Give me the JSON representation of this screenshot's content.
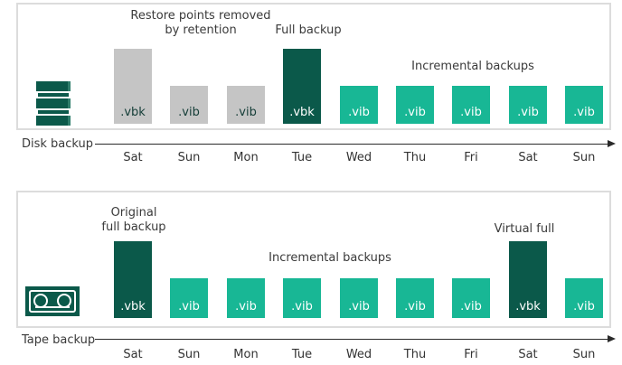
{
  "colors": {
    "full_backup_bar": "#0b594a",
    "incremental_bar": "#18b795",
    "removed_bar": "#c5c5c5",
    "panel_border": "#dcdcdc",
    "text": "#3a3a3a",
    "bar_label_light": "#ffffff",
    "bar_label_dark": "#143d37"
  },
  "disk_section": {
    "axis_label": "Disk backup",
    "annotations": {
      "retention_line1": "Restore points removed",
      "retention_line2": "by retention",
      "full_backup": "Full backup",
      "incremental": "Incremental backups"
    },
    "days": [
      "Sat",
      "Sun",
      "Mon",
      "Tue",
      "Wed",
      "Thu",
      "Fri",
      "Sat",
      "Sun"
    ],
    "bars": [
      {
        "day": "Sat",
        "label": ".vbk",
        "kind": "removed",
        "size": "tall"
      },
      {
        "day": "Sun",
        "label": ".vib",
        "kind": "removed",
        "size": "short"
      },
      {
        "day": "Mon",
        "label": ".vib",
        "kind": "removed",
        "size": "short"
      },
      {
        "day": "Tue",
        "label": ".vbk",
        "kind": "full",
        "size": "tall"
      },
      {
        "day": "Wed",
        "label": ".vib",
        "kind": "incremental",
        "size": "short"
      },
      {
        "day": "Thu",
        "label": ".vib",
        "kind": "incremental",
        "size": "short"
      },
      {
        "day": "Fri",
        "label": ".vib",
        "kind": "incremental",
        "size": "short"
      },
      {
        "day": "Sat",
        "label": ".vib",
        "kind": "incremental",
        "size": "short"
      },
      {
        "day": "Sun",
        "label": ".vib",
        "kind": "incremental",
        "size": "short"
      }
    ]
  },
  "tape_section": {
    "axis_label": "Tape backup",
    "annotations": {
      "original_line1": "Original",
      "original_line2": "full backup",
      "incremental": "Incremental backups",
      "virtual_full": "Virtual full"
    },
    "days": [
      "Sat",
      "Sun",
      "Mon",
      "Tue",
      "Wed",
      "Thu",
      "Fri",
      "Sat",
      "Sun"
    ],
    "bars": [
      {
        "day": "Sat",
        "label": ".vbk",
        "kind": "full",
        "size": "tall"
      },
      {
        "day": "Sun",
        "label": ".vib",
        "kind": "incremental",
        "size": "short"
      },
      {
        "day": "Mon",
        "label": ".vib",
        "kind": "incremental",
        "size": "short"
      },
      {
        "day": "Tue",
        "label": ".vib",
        "kind": "incremental",
        "size": "short"
      },
      {
        "day": "Wed",
        "label": ".vib",
        "kind": "incremental",
        "size": "short"
      },
      {
        "day": "Thu",
        "label": ".vib",
        "kind": "incremental",
        "size": "short"
      },
      {
        "day": "Fri",
        "label": ".vib",
        "kind": "incremental",
        "size": "short"
      },
      {
        "day": "Sat",
        "label": ".vbk",
        "kind": "full",
        "size": "tall"
      },
      {
        "day": "Sun",
        "label": ".vib",
        "kind": "incremental",
        "size": "short"
      }
    ]
  }
}
